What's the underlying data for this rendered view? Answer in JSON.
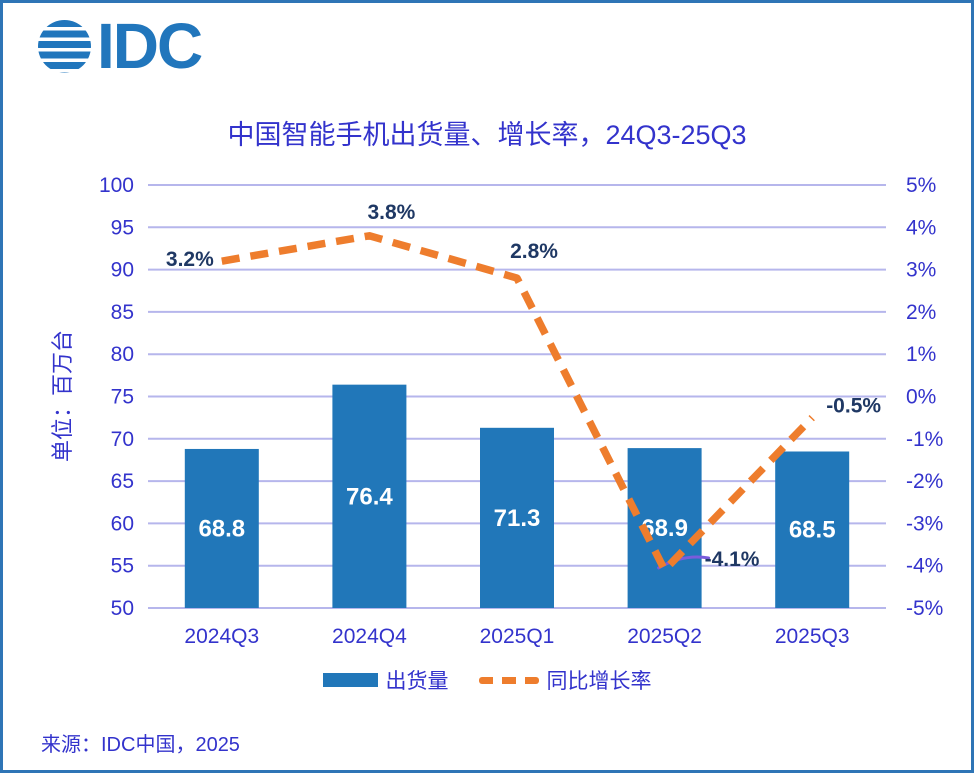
{
  "page": {
    "logo_text": "IDC",
    "title": "中国智能手机出货量、增长率，24Q3-25Q3",
    "source": "来源：IDC中国，2025"
  },
  "legend": {
    "bar_label": "出货量",
    "line_label": "同比增长率"
  },
  "colors": {
    "frame": "#2E75B6",
    "logo_blue": "#2176BC",
    "blue_text": "#3333CC",
    "gridline": "#B6B6EC",
    "bar_fill": "#2177B9",
    "bar_label": "#FFFFFF",
    "line_orange": "#EE7D2D",
    "growth_label": "#1F3864",
    "squiggle_purple": "#7A5CDB"
  },
  "chart_data": {
    "type": "bar",
    "subtype": "combo-bar-line",
    "title": "中国智能手机出货量、增长率，24Q3-25Q3",
    "categories": [
      "2024Q3",
      "2024Q4",
      "2025Q1",
      "2025Q2",
      "2025Q3"
    ],
    "series": [
      {
        "name": "出货量",
        "type": "bar",
        "axis": "left",
        "values": [
          68.8,
          76.4,
          71.3,
          68.9,
          68.5
        ],
        "labels": [
          "68.8",
          "76.4",
          "71.3",
          "68.9",
          "68.5"
        ]
      },
      {
        "name": "同比增长率",
        "type": "line",
        "axis": "right",
        "values": [
          3.2,
          3.8,
          2.8,
          -4.1,
          -0.5
        ],
        "labels": [
          "3.2%",
          "3.8%",
          "2.8%",
          "-4.1%",
          "-0.5%"
        ]
      }
    ],
    "left_axis": {
      "title": "单位：百万台",
      "min": 50,
      "max": 100,
      "step": 5,
      "ticks": [
        "100",
        "95",
        "90",
        "85",
        "80",
        "75",
        "70",
        "65",
        "60",
        "55",
        "50"
      ]
    },
    "right_axis": {
      "min": -5,
      "max": 5,
      "step": 1,
      "ticks": [
        "5%",
        "4%",
        "3%",
        "2%",
        "1%",
        "0%",
        "-1%",
        "-2%",
        "-3%",
        "-4%",
        "-5%"
      ]
    },
    "grid": true,
    "legend_position": "bottom",
    "xlabel": "",
    "ylabel": "单位：百万台"
  }
}
